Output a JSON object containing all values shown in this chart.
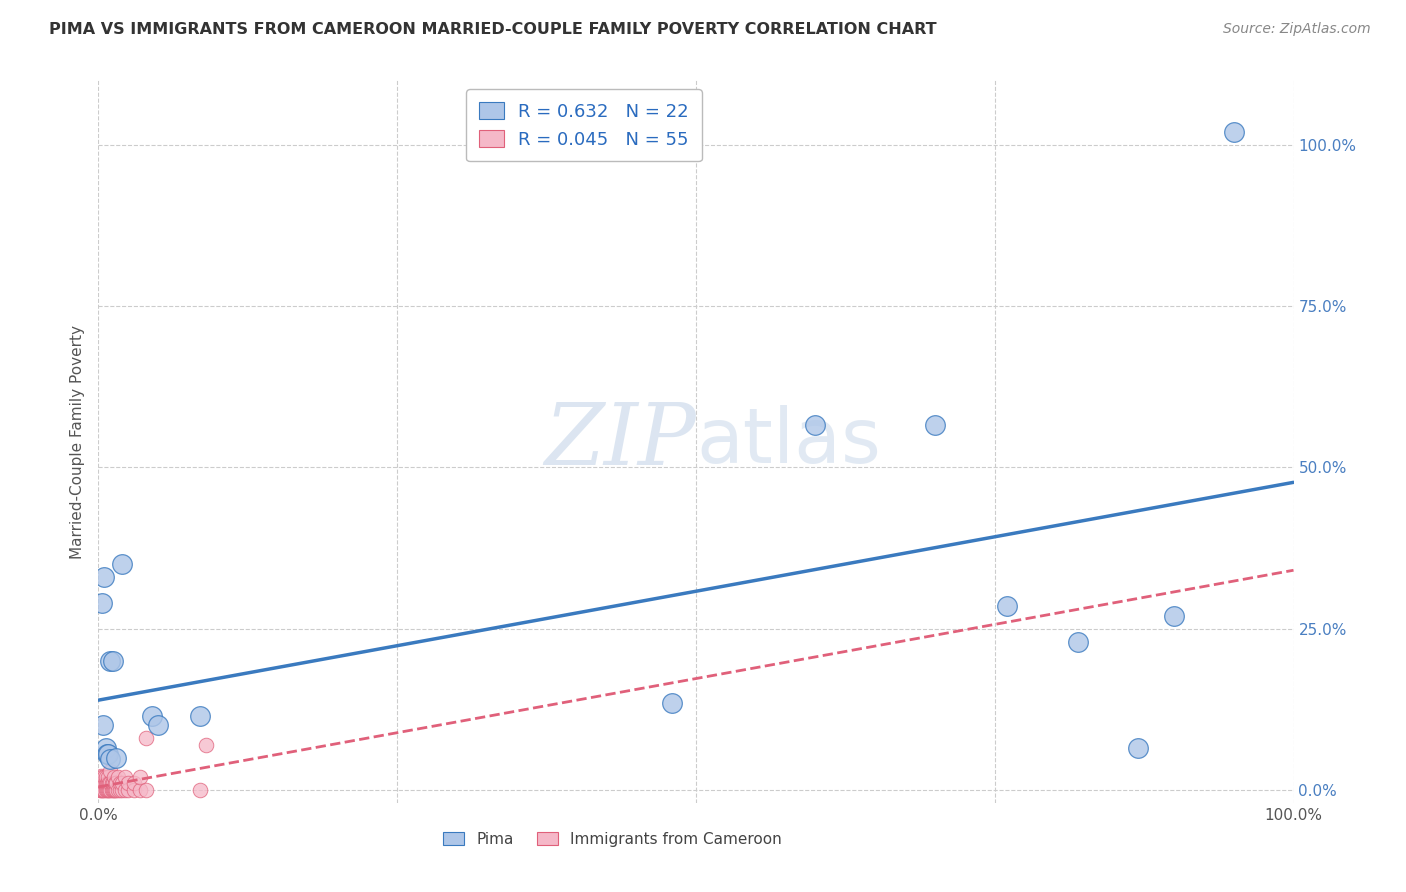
{
  "title": "PIMA VS IMMIGRANTS FROM CAMEROON MARRIED-COUPLE FAMILY POVERTY CORRELATION CHART",
  "source": "Source: ZipAtlas.com",
  "ylabel": "Married-Couple Family Poverty",
  "pima_R": 0.632,
  "pima_N": 22,
  "cameroon_R": 0.045,
  "cameroon_N": 55,
  "pima_color": "#aec6e8",
  "cameroon_color": "#f5b8c8",
  "pima_line_color": "#3a7abf",
  "cameroon_line_color": "#e0607a",
  "pima_points": [
    [
      0.003,
      0.29
    ],
    [
      0.005,
      0.33
    ],
    [
      0.01,
      0.2
    ],
    [
      0.012,
      0.2
    ],
    [
      0.02,
      0.35
    ],
    [
      0.004,
      0.1
    ],
    [
      0.006,
      0.065
    ],
    [
      0.007,
      0.055
    ],
    [
      0.008,
      0.055
    ],
    [
      0.01,
      0.048
    ],
    [
      0.015,
      0.05
    ],
    [
      0.045,
      0.115
    ],
    [
      0.05,
      0.1
    ],
    [
      0.085,
      0.115
    ],
    [
      0.48,
      0.135
    ],
    [
      0.6,
      0.565
    ],
    [
      0.7,
      0.565
    ],
    [
      0.76,
      0.285
    ],
    [
      0.82,
      0.23
    ],
    [
      0.87,
      0.065
    ],
    [
      0.9,
      0.27
    ],
    [
      0.95,
      1.02
    ]
  ],
  "cameroon_points": [
    [
      0.0,
      0.002
    ],
    [
      0.001,
      0.0
    ],
    [
      0.001,
      0.01
    ],
    [
      0.002,
      0.0
    ],
    [
      0.002,
      0.012
    ],
    [
      0.002,
      0.022
    ],
    [
      0.003,
      0.0
    ],
    [
      0.003,
      0.01
    ],
    [
      0.003,
      0.02
    ],
    [
      0.004,
      0.0
    ],
    [
      0.004,
      0.012
    ],
    [
      0.005,
      0.0
    ],
    [
      0.005,
      0.01
    ],
    [
      0.005,
      0.02
    ],
    [
      0.006,
      0.0
    ],
    [
      0.006,
      0.01
    ],
    [
      0.006,
      0.02
    ],
    [
      0.007,
      0.0
    ],
    [
      0.007,
      0.01
    ],
    [
      0.008,
      0.0
    ],
    [
      0.008,
      0.01
    ],
    [
      0.008,
      0.02
    ],
    [
      0.009,
      0.0
    ],
    [
      0.009,
      0.01
    ],
    [
      0.01,
      0.0
    ],
    [
      0.01,
      0.01
    ],
    [
      0.01,
      0.03
    ],
    [
      0.011,
      0.0
    ],
    [
      0.011,
      0.01
    ],
    [
      0.012,
      0.0
    ],
    [
      0.012,
      0.01
    ],
    [
      0.013,
      0.0
    ],
    [
      0.013,
      0.02
    ],
    [
      0.014,
      0.0
    ],
    [
      0.014,
      0.01
    ],
    [
      0.015,
      0.0
    ],
    [
      0.015,
      0.01
    ],
    [
      0.016,
      0.0
    ],
    [
      0.016,
      0.02
    ],
    [
      0.018,
      0.0
    ],
    [
      0.018,
      0.01
    ],
    [
      0.02,
      0.0
    ],
    [
      0.02,
      0.01
    ],
    [
      0.022,
      0.0
    ],
    [
      0.022,
      0.02
    ],
    [
      0.025,
      0.0
    ],
    [
      0.025,
      0.01
    ],
    [
      0.03,
      0.0
    ],
    [
      0.03,
      0.01
    ],
    [
      0.035,
      0.0
    ],
    [
      0.035,
      0.02
    ],
    [
      0.04,
      0.0
    ],
    [
      0.04,
      0.08
    ],
    [
      0.085,
      0.0
    ],
    [
      0.09,
      0.07
    ]
  ],
  "xlim": [
    0.0,
    1.0
  ],
  "ylim": [
    -0.02,
    1.1
  ],
  "yticks": [
    0.0,
    0.25,
    0.5,
    0.75,
    1.0
  ],
  "ytick_labels": [
    "0.0%",
    "25.0%",
    "50.0%",
    "75.0%",
    "100.0%"
  ],
  "xticks": [
    0.0,
    0.25,
    0.5,
    0.75,
    1.0
  ],
  "xtick_labels": [
    "0.0%",
    "",
    "",
    "",
    "100.0%"
  ],
  "watermark_zip": "ZIP",
  "watermark_atlas": "atlas",
  "background_color": "#ffffff"
}
